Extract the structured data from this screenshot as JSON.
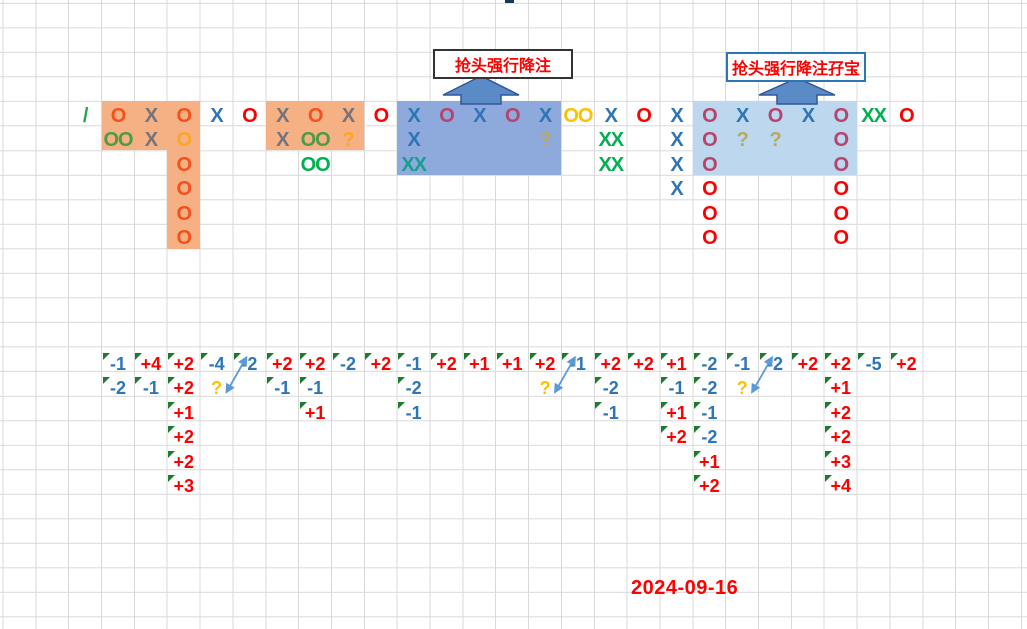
{
  "titles": {
    "arrow_label_1": "抢头强行降注",
    "arrow_label_2": "抢头强行降注孖宝"
  },
  "date_text": "2024-09-16",
  "palette": {
    "grid_line": "#D9D9D9",
    "hl_orange": "#F5B183",
    "hl_blue_mid": "#8EA9DB",
    "hl_blue_light": "#BDD7EE",
    "block_arrow_fill": "#5B8BC6",
    "block_arrow_stroke": "#31579B",
    "box1_border": "#333333",
    "box2_border": "#2E75B6",
    "label_red": "#FF0000",
    "connector_blue": "#5B9BD5",
    "triangle_green": "#1E7B2D",
    "red": "#FF0000",
    "redOrange": "#F4511E",
    "maroon": "#B5446E",
    "blue": "#2E75B6",
    "gray": "#73737D",
    "oliveGreen": "#4E9A47",
    "green": "#00B050",
    "teal": "#189E8C",
    "yellow": "#FFC000",
    "orange": "#F9A825",
    "orangeQ": "#FFA51F",
    "khaki": "#B9A95C",
    "slash": "#23A455",
    "nblue": "#2E75B6",
    "nred": "#FF0000",
    "qyellow": "#FFC000"
  },
  "highlights": [
    {
      "c1": 2,
      "r1": 1,
      "c2": 4,
      "r2": 2,
      "color": "hl_orange"
    },
    {
      "c1": 4,
      "r1": 1,
      "c2": 4,
      "r2": 6,
      "color": "hl_orange"
    },
    {
      "c1": 7,
      "r1": 1,
      "c2": 9,
      "r2": 2,
      "color": "hl_orange"
    },
    {
      "c1": 11,
      "r1": 1,
      "c2": 15,
      "r2": 3,
      "color": "hl_blue_mid"
    },
    {
      "c1": 20,
      "r1": 1,
      "c2": 24,
      "r2": 3,
      "color": "hl_blue_light"
    }
  ],
  "symbol_cells": [
    [
      1,
      1,
      "/",
      "slash"
    ],
    [
      2,
      1,
      "O",
      "redOrange"
    ],
    [
      3,
      1,
      "X",
      "gray"
    ],
    [
      4,
      1,
      "O",
      "redOrange"
    ],
    [
      5,
      1,
      "X",
      "blue"
    ],
    [
      6,
      1,
      "O",
      "red"
    ],
    [
      7,
      1,
      "X",
      "gray"
    ],
    [
      8,
      1,
      "O",
      "redOrange"
    ],
    [
      9,
      1,
      "X",
      "gray"
    ],
    [
      10,
      1,
      "O",
      "red"
    ],
    [
      11,
      1,
      "X",
      "blue"
    ],
    [
      12,
      1,
      "O",
      "maroon"
    ],
    [
      13,
      1,
      "X",
      "blue"
    ],
    [
      14,
      1,
      "O",
      "maroon"
    ],
    [
      15,
      1,
      "X",
      "blue"
    ],
    [
      16,
      1,
      "OO",
      "yellow"
    ],
    [
      17,
      1,
      "X",
      "blue"
    ],
    [
      18,
      1,
      "O",
      "red"
    ],
    [
      19,
      1,
      "X",
      "blue"
    ],
    [
      20,
      1,
      "O",
      "maroon"
    ],
    [
      21,
      1,
      "X",
      "blue"
    ],
    [
      22,
      1,
      "O",
      "maroon"
    ],
    [
      23,
      1,
      "X",
      "blue"
    ],
    [
      24,
      1,
      "O",
      "maroon"
    ],
    [
      25,
      1,
      "XX",
      "green"
    ],
    [
      26,
      1,
      "O",
      "red"
    ],
    [
      2,
      2,
      "OO",
      "oliveGreen"
    ],
    [
      3,
      2,
      "X",
      "gray"
    ],
    [
      4,
      2,
      "O",
      "orange"
    ],
    [
      7,
      2,
      "X",
      "gray"
    ],
    [
      8,
      2,
      "OO",
      "oliveGreen"
    ],
    [
      9,
      2,
      "?",
      "orangeQ"
    ],
    [
      11,
      2,
      "X",
      "blue"
    ],
    [
      15,
      2,
      "?",
      "khaki"
    ],
    [
      17,
      2,
      "XX",
      "green"
    ],
    [
      19,
      2,
      "X",
      "blue"
    ],
    [
      20,
      2,
      "O",
      "maroon"
    ],
    [
      21,
      2,
      "?",
      "khaki"
    ],
    [
      22,
      2,
      "?",
      "khaki"
    ],
    [
      24,
      2,
      "O",
      "maroon"
    ],
    [
      4,
      3,
      "O",
      "redOrange"
    ],
    [
      8,
      3,
      "OO",
      "green"
    ],
    [
      11,
      3,
      "XX",
      "teal"
    ],
    [
      17,
      3,
      "XX",
      "green"
    ],
    [
      19,
      3,
      "X",
      "blue"
    ],
    [
      20,
      3,
      "O",
      "maroon"
    ],
    [
      24,
      3,
      "O",
      "maroon"
    ],
    [
      4,
      4,
      "O",
      "redOrange"
    ],
    [
      19,
      4,
      "X",
      "blue"
    ],
    [
      20,
      4,
      "O",
      "red"
    ],
    [
      24,
      4,
      "O",
      "red"
    ],
    [
      4,
      5,
      "O",
      "redOrange"
    ],
    [
      20,
      5,
      "O",
      "red"
    ],
    [
      24,
      5,
      "O",
      "red"
    ],
    [
      4,
      6,
      "O",
      "redOrange"
    ],
    [
      20,
      6,
      "O",
      "red"
    ],
    [
      24,
      6,
      "O",
      "red"
    ]
  ],
  "number_cells": [
    [
      2,
      1,
      "-1",
      "nblue"
    ],
    [
      2,
      2,
      "-2",
      "nblue"
    ],
    [
      3,
      1,
      "+4",
      "nred"
    ],
    [
      3,
      2,
      "-1",
      "nblue"
    ],
    [
      4,
      1,
      "+2",
      "nred"
    ],
    [
      4,
      2,
      "+2",
      "nred"
    ],
    [
      4,
      3,
      "+1",
      "nred"
    ],
    [
      4,
      4,
      "+2",
      "nred"
    ],
    [
      4,
      5,
      "+2",
      "nred"
    ],
    [
      4,
      6,
      "+3",
      "nred"
    ],
    [
      5,
      1,
      "-4",
      "nblue"
    ],
    [
      5,
      2,
      "?",
      "qyellow"
    ],
    [
      6,
      1,
      "-2",
      "nblue"
    ],
    [
      7,
      1,
      "+2",
      "nred"
    ],
    [
      7,
      2,
      "-1",
      "nblue"
    ],
    [
      8,
      1,
      "+2",
      "nred"
    ],
    [
      8,
      2,
      "-1",
      "nblue"
    ],
    [
      8,
      3,
      "+1",
      "nred"
    ],
    [
      9,
      1,
      "-2",
      "nblue"
    ],
    [
      10,
      1,
      "+2",
      "nred"
    ],
    [
      11,
      1,
      "-1",
      "nblue"
    ],
    [
      11,
      2,
      "-2",
      "nblue"
    ],
    [
      11,
      3,
      "-1",
      "nblue"
    ],
    [
      12,
      1,
      "+2",
      "nred"
    ],
    [
      13,
      1,
      "+1",
      "nred"
    ],
    [
      14,
      1,
      "+1",
      "nred"
    ],
    [
      15,
      1,
      "+2",
      "nred"
    ],
    [
      15,
      2,
      "?",
      "qyellow"
    ],
    [
      16,
      1,
      "-1",
      "nblue"
    ],
    [
      17,
      1,
      "+2",
      "nred"
    ],
    [
      17,
      2,
      "-2",
      "nblue"
    ],
    [
      17,
      3,
      "-1",
      "nblue"
    ],
    [
      18,
      1,
      "+2",
      "nred"
    ],
    [
      19,
      1,
      "+1",
      "nred"
    ],
    [
      19,
      2,
      "-1",
      "nblue"
    ],
    [
      19,
      3,
      "+1",
      "nred"
    ],
    [
      19,
      4,
      "+2",
      "nred"
    ],
    [
      20,
      1,
      "-2",
      "nblue"
    ],
    [
      20,
      2,
      "-2",
      "nblue"
    ],
    [
      20,
      3,
      "-1",
      "nblue"
    ],
    [
      20,
      4,
      "-2",
      "nblue"
    ],
    [
      20,
      5,
      "+1",
      "nred"
    ],
    [
      20,
      6,
      "+2",
      "nred"
    ],
    [
      21,
      1,
      "-1",
      "nblue"
    ],
    [
      21,
      2,
      "?",
      "qyellow"
    ],
    [
      22,
      1,
      "-2",
      "nblue"
    ],
    [
      23,
      1,
      "+2",
      "nred"
    ],
    [
      24,
      1,
      "+2",
      "nred"
    ],
    [
      24,
      2,
      "+1",
      "nred"
    ],
    [
      24,
      3,
      "+2",
      "nred"
    ],
    [
      24,
      4,
      "+2",
      "nred"
    ],
    [
      24,
      5,
      "+3",
      "nred"
    ],
    [
      24,
      6,
      "+4",
      "nred"
    ],
    [
      25,
      1,
      "-5",
      "nblue"
    ],
    [
      26,
      1,
      "+2",
      "nred"
    ]
  ],
  "connectors": [
    {
      "q_col": 5,
      "q_row": 2,
      "target_col": 6,
      "target_row": 1
    },
    {
      "q_col": 15,
      "q_row": 2,
      "target_col": 16,
      "target_row": 1
    },
    {
      "q_col": 21,
      "q_row": 2,
      "target_col": 22,
      "target_row": 1
    }
  ]
}
